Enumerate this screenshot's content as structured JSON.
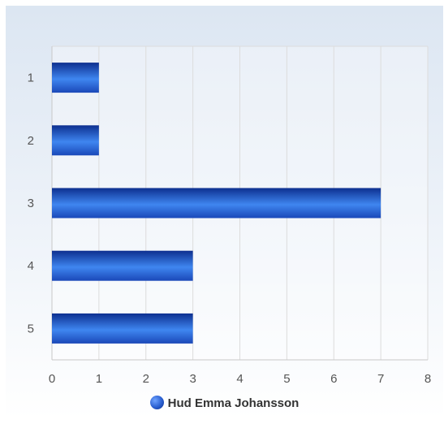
{
  "chart_data": {
    "type": "bar",
    "orientation": "horizontal",
    "categories": [
      "1",
      "2",
      "3",
      "4",
      "5"
    ],
    "series": [
      {
        "name": "Hud Emma Johansson",
        "values": [
          1,
          1,
          7,
          3,
          3
        ]
      }
    ],
    "xlim": [
      0,
      8
    ],
    "x_ticks": [
      "0",
      "1",
      "2",
      "3",
      "4",
      "5",
      "6",
      "7",
      "8"
    ],
    "grid": true,
    "legend_position": "bottom",
    "colors": {
      "bar_dark": "#0d2f8f",
      "bar_light": "#3f86f0",
      "grid": "#dcdcdc",
      "axis": "#c8c8c8"
    }
  }
}
